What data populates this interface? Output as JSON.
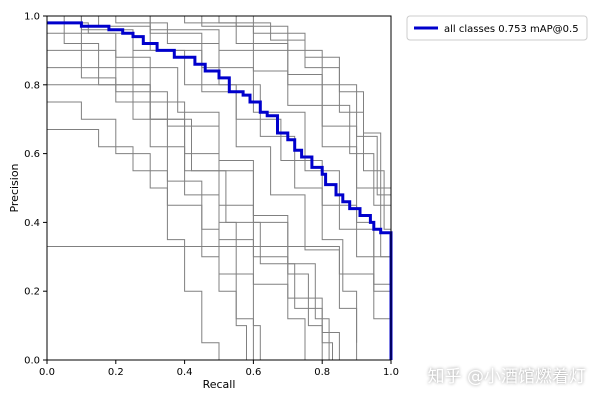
{
  "chart_data": {
    "type": "line",
    "xlabel": "Recall",
    "ylabel": "Precision",
    "xlim": [
      0,
      1
    ],
    "ylim": [
      0,
      1
    ],
    "xticks": [
      "0.0",
      "0.2",
      "0.4",
      "0.6",
      "0.8",
      "1.0"
    ],
    "yticks": [
      "0.0",
      "0.2",
      "0.4",
      "0.6",
      "0.8",
      "1.0"
    ],
    "grid": false,
    "legend_position": "outside-upper-right",
    "series": [
      {
        "name": "all classes 0.753 mAP@0.5",
        "color": "#0000cc",
        "step_points": [
          [
            0.0,
            0.98
          ],
          [
            0.05,
            0.98
          ],
          [
            0.1,
            0.97
          ],
          [
            0.18,
            0.96
          ],
          [
            0.22,
            0.95
          ],
          [
            0.25,
            0.94
          ],
          [
            0.28,
            0.92
          ],
          [
            0.32,
            0.9
          ],
          [
            0.37,
            0.88
          ],
          [
            0.43,
            0.86
          ],
          [
            0.46,
            0.84
          ],
          [
            0.5,
            0.82
          ],
          [
            0.53,
            0.78
          ],
          [
            0.57,
            0.77
          ],
          [
            0.59,
            0.75
          ],
          [
            0.62,
            0.72
          ],
          [
            0.64,
            0.71
          ],
          [
            0.67,
            0.66
          ],
          [
            0.7,
            0.64
          ],
          [
            0.72,
            0.61
          ],
          [
            0.74,
            0.59
          ],
          [
            0.77,
            0.56
          ],
          [
            0.8,
            0.54
          ],
          [
            0.81,
            0.51
          ],
          [
            0.84,
            0.48
          ],
          [
            0.86,
            0.46
          ],
          [
            0.88,
            0.44
          ],
          [
            0.91,
            0.42
          ],
          [
            0.94,
            0.4
          ],
          [
            0.95,
            0.38
          ],
          [
            0.97,
            0.37
          ],
          [
            1.0,
            0.36
          ],
          [
            1.0,
            0.0
          ]
        ]
      }
    ],
    "background_series": {
      "color": "#808080",
      "lines": [
        [
          [
            0,
            1.0
          ],
          [
            0.1,
            0.95
          ],
          [
            0.2,
            0.88
          ],
          [
            0.3,
            0.75
          ],
          [
            0.4,
            0.6
          ],
          [
            0.5,
            0.45
          ],
          [
            0.6,
            0.3
          ],
          [
            0.7,
            0.18
          ],
          [
            0.8,
            0.08
          ],
          [
            0.85,
            0.0
          ]
        ],
        [
          [
            0,
            1.0
          ],
          [
            0.15,
            1.0
          ],
          [
            0.3,
            0.95
          ],
          [
            0.45,
            0.85
          ],
          [
            0.6,
            0.72
          ],
          [
            0.75,
            0.55
          ],
          [
            0.85,
            0.38
          ],
          [
            0.95,
            0.2
          ],
          [
            1.0,
            0.1
          ]
        ],
        [
          [
            0,
            0.95
          ],
          [
            0.1,
            0.9
          ],
          [
            0.2,
            0.8
          ],
          [
            0.3,
            0.7
          ],
          [
            0.4,
            0.55
          ],
          [
            0.5,
            0.4
          ],
          [
            0.55,
            0.25
          ],
          [
            0.6,
            0.1
          ],
          [
            0.62,
            0.0
          ]
        ],
        [
          [
            0,
            1.0
          ],
          [
            0.2,
            1.0
          ],
          [
            0.4,
            0.98
          ],
          [
            0.55,
            0.92
          ],
          [
            0.7,
            0.8
          ],
          [
            0.8,
            0.68
          ],
          [
            0.9,
            0.5
          ],
          [
            0.97,
            0.3
          ],
          [
            1.0,
            0.2
          ]
        ],
        [
          [
            0,
            1.0
          ],
          [
            0.05,
            0.92
          ],
          [
            0.15,
            0.85
          ],
          [
            0.25,
            0.7
          ],
          [
            0.35,
            0.52
          ],
          [
            0.45,
            0.38
          ],
          [
            0.5,
            0.25
          ],
          [
            0.55,
            0.12
          ],
          [
            0.6,
            0.0
          ]
        ],
        [
          [
            0,
            1.0
          ],
          [
            0.1,
            1.0
          ],
          [
            0.3,
            0.96
          ],
          [
            0.5,
            0.9
          ],
          [
            0.6,
            0.84
          ],
          [
            0.7,
            0.74
          ],
          [
            0.8,
            0.62
          ],
          [
            0.9,
            0.4
          ],
          [
            0.95,
            0.22
          ],
          [
            1.0,
            0.05
          ]
        ],
        [
          [
            0,
            0.9
          ],
          [
            0.1,
            0.82
          ],
          [
            0.2,
            0.75
          ],
          [
            0.3,
            0.62
          ],
          [
            0.4,
            0.48
          ],
          [
            0.5,
            0.35
          ],
          [
            0.6,
            0.22
          ],
          [
            0.7,
            0.12
          ],
          [
            0.75,
            0.0
          ]
        ],
        [
          [
            0,
            1.0
          ],
          [
            0.25,
            1.0
          ],
          [
            0.45,
            0.97
          ],
          [
            0.6,
            0.9
          ],
          [
            0.7,
            0.83
          ],
          [
            0.8,
            0.74
          ],
          [
            0.88,
            0.6
          ],
          [
            0.95,
            0.45
          ],
          [
            1.0,
            0.3
          ]
        ],
        [
          [
            0,
            0.75
          ],
          [
            0.1,
            0.7
          ],
          [
            0.2,
            0.6
          ],
          [
            0.3,
            0.5
          ],
          [
            0.35,
            0.35
          ],
          [
            0.4,
            0.2
          ],
          [
            0.45,
            0.05
          ],
          [
            0.5,
            0.0
          ]
        ],
        [
          [
            0,
            1.0
          ],
          [
            0.2,
            0.98
          ],
          [
            0.35,
            0.92
          ],
          [
            0.5,
            0.8
          ],
          [
            0.62,
            0.65
          ],
          [
            0.72,
            0.5
          ],
          [
            0.8,
            0.35
          ],
          [
            0.86,
            0.2
          ],
          [
            0.9,
            0.05
          ]
        ],
        [
          [
            0,
            0.67
          ],
          [
            0.15,
            0.62
          ],
          [
            0.25,
            0.55
          ],
          [
            0.35,
            0.45
          ],
          [
            0.45,
            0.3
          ],
          [
            0.5,
            0.2
          ],
          [
            0.55,
            0.1
          ],
          [
            0.58,
            0.0
          ]
        ],
        [
          [
            0,
            1.0
          ],
          [
            0.3,
            1.0
          ],
          [
            0.5,
            0.98
          ],
          [
            0.65,
            0.93
          ],
          [
            0.75,
            0.85
          ],
          [
            0.85,
            0.72
          ],
          [
            0.92,
            0.55
          ],
          [
            0.98,
            0.38
          ],
          [
            1.0,
            0.25
          ]
        ],
        [
          [
            0,
            0.98
          ],
          [
            0.12,
            0.95
          ],
          [
            0.25,
            0.85
          ],
          [
            0.38,
            0.72
          ],
          [
            0.5,
            0.58
          ],
          [
            0.6,
            0.42
          ],
          [
            0.7,
            0.28
          ],
          [
            0.78,
            0.12
          ],
          [
            0.82,
            0.0
          ]
        ],
        [
          [
            0,
            1.0
          ],
          [
            0.15,
            0.97
          ],
          [
            0.3,
            0.9
          ],
          [
            0.45,
            0.78
          ],
          [
            0.55,
            0.62
          ],
          [
            0.65,
            0.48
          ],
          [
            0.75,
            0.32
          ],
          [
            0.85,
            0.15
          ],
          [
            0.9,
            0.0
          ]
        ],
        [
          [
            0,
            0.33
          ],
          [
            0.5,
            0.33
          ],
          [
            0.75,
            0.33
          ],
          [
            0.85,
            0.25
          ],
          [
            0.95,
            0.12
          ],
          [
            1.0,
            0.05
          ]
        ],
        [
          [
            0,
            1.0
          ],
          [
            0.4,
            1.0
          ],
          [
            0.6,
            0.95
          ],
          [
            0.75,
            0.88
          ],
          [
            0.85,
            0.78
          ],
          [
            0.92,
            0.66
          ],
          [
            0.97,
            0.5
          ],
          [
            1.0,
            0.4
          ]
        ],
        [
          [
            0,
            0.85
          ],
          [
            0.15,
            0.8
          ],
          [
            0.3,
            0.7
          ],
          [
            0.42,
            0.55
          ],
          [
            0.52,
            0.4
          ],
          [
            0.62,
            0.28
          ],
          [
            0.72,
            0.15
          ],
          [
            0.8,
            0.05
          ],
          [
            0.83,
            0.0
          ]
        ],
        [
          [
            0,
            1.0
          ],
          [
            0.1,
            0.96
          ],
          [
            0.25,
            0.9
          ],
          [
            0.4,
            0.8
          ],
          [
            0.55,
            0.7
          ],
          [
            0.68,
            0.58
          ],
          [
            0.8,
            0.45
          ],
          [
            0.9,
            0.3
          ],
          [
            1.0,
            0.15
          ]
        ],
        [
          [
            0,
            0.8
          ],
          [
            0.2,
            0.78
          ],
          [
            0.35,
            0.68
          ],
          [
            0.5,
            0.55
          ],
          [
            0.6,
            0.4
          ],
          [
            0.7,
            0.25
          ],
          [
            0.76,
            0.1
          ],
          [
            0.8,
            0.0
          ]
        ],
        [
          [
            0,
            1.0
          ],
          [
            0.35,
            1.0
          ],
          [
            0.55,
            0.97
          ],
          [
            0.7,
            0.9
          ],
          [
            0.8,
            0.8
          ],
          [
            0.9,
            0.65
          ],
          [
            0.96,
            0.48
          ],
          [
            1.0,
            0.35
          ]
        ]
      ]
    }
  },
  "watermark": "知乎 @小酒馆燃着灯"
}
